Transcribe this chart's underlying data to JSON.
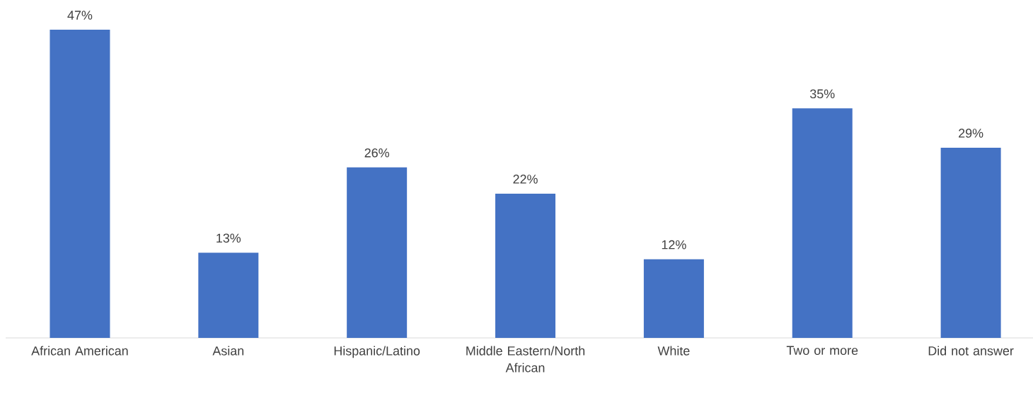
{
  "chart_data": {
    "type": "bar",
    "categories": [
      "African American",
      "Asian",
      "Hispanic/Latino",
      "Middle Eastern/North African",
      "White",
      "Two or more",
      "Did not answer"
    ],
    "values": [
      47,
      13,
      26,
      22,
      12,
      35,
      29
    ],
    "value_labels": [
      "47%",
      "13%",
      "26%",
      "22%",
      "12%",
      "35%",
      "29%"
    ],
    "color": "#4472c4"
  }
}
